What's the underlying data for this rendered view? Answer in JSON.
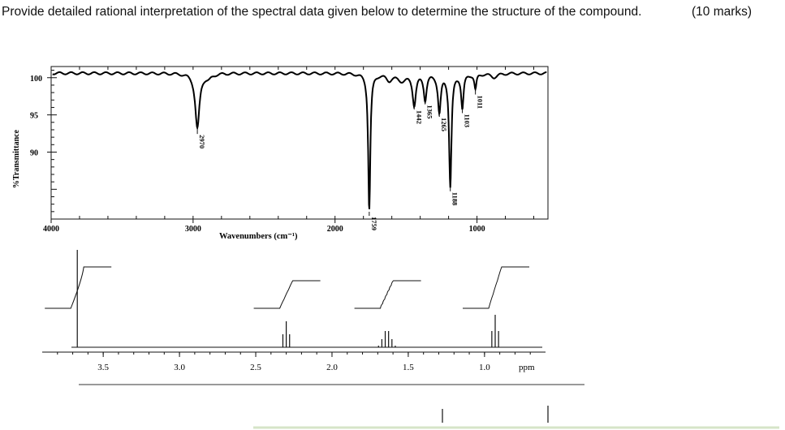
{
  "question": {
    "text": "Provide detailed rational interpretation of the spectral data given below to determine the structure of the compound.",
    "marks": "(10 marks)"
  },
  "chart_data": [
    {
      "type": "line",
      "name": "IR spectrum",
      "xlabel": "Wavenumbers (cm⁻¹)",
      "ylabel": "%Transmittance",
      "x_ticks": [
        "4000",
        "3000",
        "2000",
        "1000"
      ],
      "y_ticks": [
        "100",
        "95",
        "90"
      ],
      "xlim": [
        4000,
        500
      ],
      "ylim": [
        81,
        101.5
      ],
      "peak_labels": [
        "2970",
        "1759",
        "1442",
        "1365",
        "1265",
        "1188",
        "1103",
        "1011"
      ],
      "peaks": [
        {
          "x": 2970,
          "y": 93.2
        },
        {
          "x": 1759,
          "y": 82.2
        },
        {
          "x": 1442,
          "y": 96.5
        },
        {
          "x": 1365,
          "y": 97.2
        },
        {
          "x": 1265,
          "y": 95.5
        },
        {
          "x": 1188,
          "y": 85.5
        },
        {
          "x": 1103,
          "y": 96.0
        },
        {
          "x": 1011,
          "y": 98.5
        }
      ]
    },
    {
      "type": "line",
      "name": "1H NMR spectrum",
      "xlabel": "ppm",
      "x_ticks": [
        "3.5",
        "3.0",
        "2.5",
        "2.0",
        "1.5",
        "1.0"
      ],
      "xlim": [
        3.9,
        0.6
      ],
      "signals": [
        {
          "center": 3.67,
          "multiplicity": "singlet",
          "integral": 3
        },
        {
          "center": 2.3,
          "multiplicity": "triplet",
          "integral": 2
        },
        {
          "center": 1.64,
          "multiplicity": "sextet",
          "integral": 2
        },
        {
          "center": 0.93,
          "multiplicity": "triplet",
          "integral": 3
        }
      ]
    }
  ]
}
